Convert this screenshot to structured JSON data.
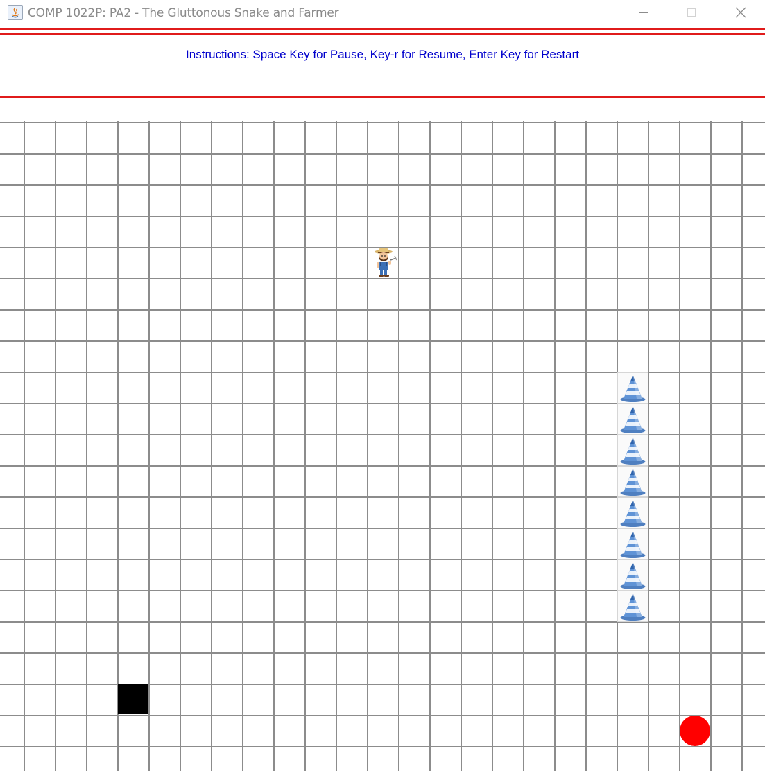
{
  "window": {
    "title": "COMP 1022P: PA2 - The Gluttonous Snake and Farmer",
    "controls": [
      "minimize",
      "maximize",
      "close"
    ]
  },
  "header": {
    "instructions": "Instructions: Space Key for Pause, Key-r for Resume, Enter Key for Restart",
    "instructions_color": "#0000cc",
    "divider_color": "#e01b1b"
  },
  "board": {
    "grid_line_color": "#8c8c8c",
    "farmer_icon": "farmer-icon",
    "snake_segment_icon": "traffic-cone-icon",
    "snake_length": 8,
    "obstacle_icon": "black-square",
    "food_icon": "red-circle",
    "food_color": "#ff0000",
    "obstacle_color": "#000000"
  }
}
